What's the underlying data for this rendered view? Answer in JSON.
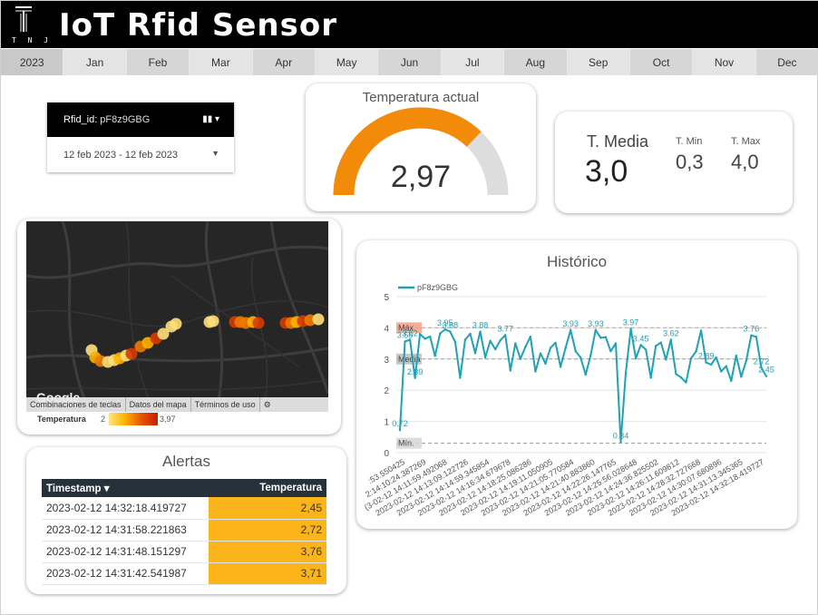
{
  "header": {
    "title": "IoT Rfid Sensor",
    "logo_text": "T N J"
  },
  "months": [
    "2023",
    "Jan",
    "Feb",
    "Mar",
    "Apr",
    "May",
    "Jun",
    "Jul",
    "Aug",
    "Sep",
    "Oct",
    "Nov",
    "Dec"
  ],
  "filters": {
    "rfid_label": "Rfid_id:",
    "rfid_value": "pF8z9GBG",
    "date_range": "12 feb 2023 - 12 feb 2023"
  },
  "gauge": {
    "title": "Temperatura actual",
    "value_text": "2,97",
    "value": 2.97,
    "min": 0,
    "max": 4.0,
    "fill_color": "#f38b0a",
    "track_color": "#dddddd"
  },
  "stats": {
    "mean_label": "T. Media",
    "mean_value": "3,0",
    "min_label": "T. Min",
    "min_value": "0,3",
    "max_label": "T. Max",
    "max_value": "4,0"
  },
  "map": {
    "footer_links": [
      "Combinaciones de teclas",
      "Datos del mapa",
      "Términos de uso"
    ],
    "google": "Google",
    "legend_label": "Temperatura",
    "legend_min": "2",
    "legend_max": "3,97"
  },
  "alerts": {
    "title": "Alertas",
    "col_timestamp": "Timestamp",
    "col_temperature": "Temperatura",
    "rows": [
      {
        "timestamp": "2023-02-12 14:32:18.419727",
        "temperature": "2,45"
      },
      {
        "timestamp": "2023-02-12 14:31:58.221863",
        "temperature": "2,72"
      },
      {
        "timestamp": "2023-02-12 14:31:48.151297",
        "temperature": "3,76"
      },
      {
        "timestamp": "2023-02-12 14:31:42.541987",
        "temperature": "3,71"
      }
    ]
  },
  "history": {
    "title": "Histórico",
    "series_name": "pF8z9GBG",
    "max_label": "Máx.",
    "mean_label": "Media",
    "min_label": "Mín."
  },
  "chart_data": {
    "type": "line",
    "title": "Histórico",
    "ylim": [
      0,
      5
    ],
    "yticks": [
      0,
      1,
      2,
      3,
      4,
      5
    ],
    "reference_lines": {
      "max": 4.0,
      "mean": 3.0,
      "min": 0.3
    },
    "x_tick_labels": [
      ":53.550425",
      "2:14:10:24.387269",
      "(3-02-12 14:11:59.492068",
      "2023-02-12 14:13:09.122726",
      "2023-02-12 14:14:59.345854",
      "2023-02-12 14:16:34.679678",
      "2023-02-12 14:18:25.086286",
      "2023-02-12 14:19:11.050905",
      "2023-02-12 14:21:05.770584",
      "2023-02-12 14:21:40.883860",
      "2023-02-12 14:22:26.147765",
      "2023-02-12 14:25:56.028648",
      "2023-02-12 14:24:36.825502",
      "2023-02-12 14:26:11.609812",
      "2023-02-12 14:28:32.727668",
      "2023-02-12 14:30:07.680896",
      "2023-02-12 14:31:13.345365",
      "2023-02-12 14:32:18.419727"
    ],
    "series": [
      {
        "name": "pF8z9GBG",
        "color": "#1fa2b5",
        "values": [
          0.72,
          3.56,
          3.62,
          2.39,
          3.8,
          3.65,
          3.72,
          3.1,
          3.82,
          3.95,
          3.88,
          3.55,
          2.4,
          3.62,
          3.81,
          3.19,
          3.88,
          3.05,
          3.58,
          3.31,
          3.6,
          3.77,
          2.63,
          3.5,
          3.0,
          3.39,
          3.72,
          2.6,
          3.18,
          2.85,
          3.36,
          3.52,
          2.75,
          3.35,
          3.93,
          3.25,
          3.05,
          2.5,
          3.12,
          3.93,
          3.68,
          3.7,
          3.25,
          3.5,
          0.34,
          2.55,
          3.97,
          3.02,
          3.45,
          3.3,
          2.4,
          3.42,
          3.53,
          2.98,
          3.62,
          2.52,
          2.41,
          2.25,
          3.02,
          3.24,
          3.91,
          2.89,
          2.82,
          3.05,
          2.6,
          2.77,
          2.3,
          3.11,
          2.43,
          2.95,
          3.76,
          3.71,
          2.72,
          2.45
        ]
      }
    ],
    "labeled_points": [
      {
        "value": 0.72,
        "label": "0.72"
      },
      {
        "value": 3.56,
        "label": "3.56"
      },
      {
        "value": 3.62,
        "label": "3.62"
      },
      {
        "value": 2.39,
        "label": "2.39"
      },
      {
        "value": 3.95,
        "label": "3.95"
      },
      {
        "value": 3.88,
        "label": "3.88"
      },
      {
        "value": 3.88,
        "label": "3.88"
      },
      {
        "value": 3.77,
        "label": "3.77"
      },
      {
        "value": 3.93,
        "label": "3.93"
      },
      {
        "value": 3.93,
        "label": "3.93"
      },
      {
        "value": 3.97,
        "label": "3.97"
      },
      {
        "value": 0.34,
        "label": "0.34"
      },
      {
        "value": 3.45,
        "label": "3.45"
      },
      {
        "value": 3.62,
        "label": "3.62"
      },
      {
        "value": 3.9,
        "label": "3.9"
      },
      {
        "value": 2.89,
        "label": "2.89"
      },
      {
        "value": 3.76,
        "label": "3.76"
      },
      {
        "value": 2.72,
        "label": "2.72"
      },
      {
        "value": 2.45,
        "label": "2.45"
      }
    ]
  }
}
